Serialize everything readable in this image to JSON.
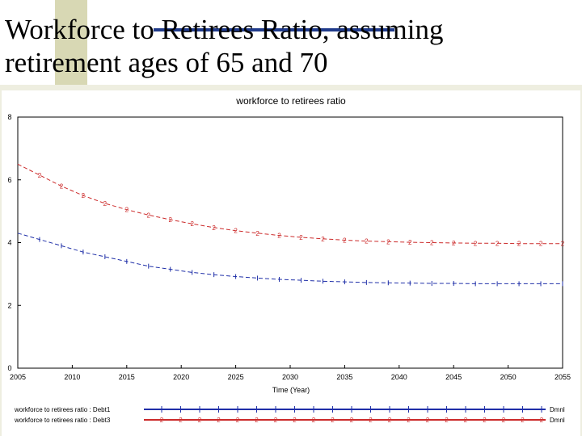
{
  "slide": {
    "title_line1": "Workforce to Retirees Ratio, assuming",
    "title_line2": "retirement ages of 65 and 70"
  },
  "colors": {
    "series1": "#1f2fa8",
    "series2": "#cc2a2a",
    "accent_bar": "#1f3a8a",
    "accent_block": "#d8d8b4",
    "band": "#eeeee0"
  },
  "chart_data": {
    "type": "line",
    "title": "workforce to retirees ratio",
    "xlabel": "Time (Year)",
    "ylabel": "",
    "xlim": [
      2005,
      2055
    ],
    "ylim": [
      0,
      8
    ],
    "xticks": [
      "2005",
      "2010",
      "2015",
      "2020",
      "2025",
      "2030",
      "2035",
      "2040",
      "2045",
      "2050",
      "2055"
    ],
    "yticks": [
      "0",
      "2",
      "4",
      "6",
      "8"
    ],
    "grid": false,
    "series": [
      {
        "name": "workforce to retirees ratio : Debt1",
        "marker": "1",
        "unit": "Dmnl",
        "x": [
          2005,
          2007,
          2009,
          2011,
          2013,
          2015,
          2017,
          2019,
          2021,
          2023,
          2025,
          2027,
          2029,
          2031,
          2033,
          2035,
          2037,
          2039,
          2041,
          2043,
          2045,
          2047,
          2049,
          2051,
          2053,
          2055
        ],
        "values": [
          4.3,
          4.1,
          3.9,
          3.7,
          3.55,
          3.4,
          3.25,
          3.15,
          3.05,
          2.98,
          2.92,
          2.87,
          2.83,
          2.8,
          2.77,
          2.75,
          2.73,
          2.72,
          2.71,
          2.7,
          2.7,
          2.69,
          2.69,
          2.69,
          2.69,
          2.69
        ]
      },
      {
        "name": "workforce to retirees ratio : Debt3",
        "marker": "2",
        "unit": "Dmnl",
        "x": [
          2005,
          2007,
          2009,
          2011,
          2013,
          2015,
          2017,
          2019,
          2021,
          2023,
          2025,
          2027,
          2029,
          2031,
          2033,
          2035,
          2037,
          2039,
          2041,
          2043,
          2045,
          2047,
          2049,
          2051,
          2053,
          2055
        ],
        "values": [
          6.5,
          6.15,
          5.8,
          5.5,
          5.25,
          5.05,
          4.88,
          4.73,
          4.6,
          4.48,
          4.38,
          4.3,
          4.23,
          4.17,
          4.12,
          4.08,
          4.05,
          4.03,
          4.01,
          4.0,
          3.99,
          3.98,
          3.98,
          3.97,
          3.97,
          3.97
        ]
      }
    ],
    "legend": [
      {
        "label": "workforce to retirees ratio : Debt1",
        "unit": "Dmnl"
      },
      {
        "label": "workforce to retirees ratio : Debt3",
        "unit": "Dmnl"
      }
    ],
    "legend_position": "bottom"
  }
}
